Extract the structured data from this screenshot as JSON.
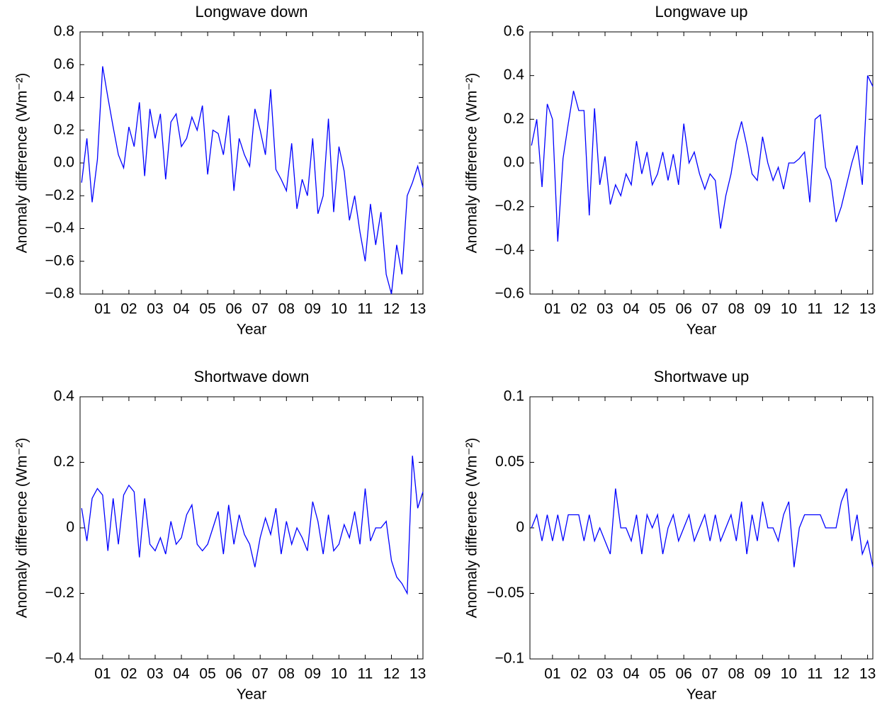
{
  "chart_data": [
    {
      "type": "line",
      "title": "Longwave down",
      "xlabel": "Year",
      "ylabel": "Anomaly difference (Wm⁻²)",
      "color": "#0000ff",
      "x": [
        0.2,
        0.4,
        0.6,
        0.8,
        1.0,
        1.2,
        1.4,
        1.6,
        1.8,
        2.0,
        2.2,
        2.4,
        2.6,
        2.8,
        3.0,
        3.2,
        3.4,
        3.6,
        3.8,
        4.0,
        4.2,
        4.4,
        4.6,
        4.8,
        5.0,
        5.2,
        5.4,
        5.6,
        5.8,
        6.0,
        6.2,
        6.4,
        6.6,
        6.8,
        7.0,
        7.2,
        7.4,
        7.6,
        7.8,
        8.0,
        8.2,
        8.4,
        8.6,
        8.8,
        9.0,
        9.2,
        9.4,
        9.6,
        9.8,
        10.0,
        10.2,
        10.4,
        10.6,
        10.8,
        11.0,
        11.2,
        11.4,
        11.6,
        11.8,
        12.0,
        12.2,
        12.4,
        12.6,
        12.8,
        13.0,
        13.2
      ],
      "values": [
        -0.12,
        0.15,
        -0.24,
        0.02,
        0.59,
        0.4,
        0.22,
        0.05,
        -0.03,
        0.22,
        0.1,
        0.37,
        -0.08,
        0.33,
        0.15,
        0.3,
        -0.1,
        0.25,
        0.3,
        0.1,
        0.15,
        0.28,
        0.2,
        0.35,
        -0.07,
        0.2,
        0.18,
        0.05,
        0.29,
        -0.17,
        0.15,
        0.05,
        -0.02,
        0.33,
        0.2,
        0.05,
        0.45,
        -0.04,
        -0.1,
        -0.17,
        0.12,
        -0.28,
        -0.1,
        -0.2,
        0.15,
        -0.31,
        -0.2,
        0.27,
        -0.3,
        0.1,
        -0.05,
        -0.35,
        -0.2,
        -0.42,
        -0.6,
        -0.25,
        -0.5,
        -0.3,
        -0.68,
        -0.8,
        -0.5,
        -0.68,
        -0.2,
        -0.12,
        -0.02,
        -0.15
      ],
      "xlim": [
        0.14,
        13.2
      ],
      "xticks": [
        {
          "value": 1,
          "label": "01"
        },
        {
          "value": 2,
          "label": "02"
        },
        {
          "value": 3,
          "label": "03"
        },
        {
          "value": 4,
          "label": "04"
        },
        {
          "value": 5,
          "label": "05"
        },
        {
          "value": 6,
          "label": "06"
        },
        {
          "value": 7,
          "label": "07"
        },
        {
          "value": 8,
          "label": "08"
        },
        {
          "value": 9,
          "label": "09"
        },
        {
          "value": 10,
          "label": "10"
        },
        {
          "value": 11,
          "label": "11"
        },
        {
          "value": 12,
          "label": "12"
        },
        {
          "value": 13,
          "label": "13"
        }
      ],
      "ylim": [
        -0.8,
        0.8
      ],
      "yticks": [
        {
          "value": -0.8,
          "label": "−0.8"
        },
        {
          "value": -0.6,
          "label": "−0.6"
        },
        {
          "value": -0.4,
          "label": "−0.4"
        },
        {
          "value": -0.2,
          "label": "−0.2"
        },
        {
          "value": 0,
          "label": "0.0"
        },
        0.2,
        0.4,
        0.6,
        0.8
      ]
    },
    {
      "type": "line",
      "title": "Longwave up",
      "xlabel": "Year",
      "ylabel": "Anomaly difference (Wm⁻²)",
      "color": "#0000ff",
      "x": [
        0.2,
        0.4,
        0.6,
        0.8,
        1.0,
        1.2,
        1.4,
        1.6,
        1.8,
        2.0,
        2.2,
        2.4,
        2.6,
        2.8,
        3.0,
        3.2,
        3.4,
        3.6,
        3.8,
        4.0,
        4.2,
        4.4,
        4.6,
        4.8,
        5.0,
        5.2,
        5.4,
        5.6,
        5.8,
        6.0,
        6.2,
        6.4,
        6.6,
        6.8,
        7.0,
        7.2,
        7.4,
        7.6,
        7.8,
        8.0,
        8.2,
        8.4,
        8.6,
        8.8,
        9.0,
        9.2,
        9.4,
        9.6,
        9.8,
        10.0,
        10.2,
        10.4,
        10.6,
        10.8,
        11.0,
        11.2,
        11.4,
        11.6,
        11.8,
        12.0,
        12.2,
        12.4,
        12.6,
        12.8,
        13.0,
        13.2
      ],
      "values": [
        0.08,
        0.2,
        -0.11,
        0.27,
        0.2,
        -0.36,
        0.02,
        0.18,
        0.33,
        0.24,
        0.24,
        -0.24,
        0.25,
        -0.1,
        0.03,
        -0.19,
        -0.1,
        -0.15,
        -0.05,
        -0.1,
        0.1,
        -0.05,
        0.05,
        -0.1,
        -0.05,
        0.05,
        -0.08,
        0.04,
        -0.1,
        0.18,
        0.0,
        0.05,
        -0.05,
        -0.12,
        -0.05,
        -0.08,
        -0.3,
        -0.15,
        -0.05,
        0.1,
        0.19,
        0.08,
        -0.05,
        -0.08,
        0.12,
        0.0,
        -0.08,
        -0.02,
        -0.12,
        0.0,
        0.0,
        0.02,
        0.05,
        -0.18,
        0.2,
        0.22,
        -0.02,
        -0.08,
        -0.27,
        -0.2,
        -0.1,
        0.0,
        0.08,
        -0.1,
        0.4,
        0.35
      ],
      "xlim": [
        0.14,
        13.2
      ],
      "xticks": [
        {
          "value": 1,
          "label": "01"
        },
        {
          "value": 2,
          "label": "02"
        },
        {
          "value": 3,
          "label": "03"
        },
        {
          "value": 4,
          "label": "04"
        },
        {
          "value": 5,
          "label": "05"
        },
        {
          "value": 6,
          "label": "06"
        },
        {
          "value": 7,
          "label": "07"
        },
        {
          "value": 8,
          "label": "08"
        },
        {
          "value": 9,
          "label": "09"
        },
        {
          "value": 10,
          "label": "10"
        },
        {
          "value": 11,
          "label": "11"
        },
        {
          "value": 12,
          "label": "12"
        },
        {
          "value": 13,
          "label": "13"
        }
      ],
      "ylim": [
        -0.6,
        0.6
      ],
      "yticks": [
        {
          "value": -0.6,
          "label": "−0.6"
        },
        {
          "value": -0.4,
          "label": "−0.4"
        },
        {
          "value": -0.2,
          "label": "−0.2"
        },
        {
          "value": 0,
          "label": "0.0"
        },
        0.2,
        0.4,
        0.6
      ]
    },
    {
      "type": "line",
      "title": "Shortwave down",
      "xlabel": "Year",
      "ylabel": "Anomaly difference (Wm⁻²)",
      "color": "#0000ff",
      "x": [
        0.2,
        0.4,
        0.6,
        0.8,
        1.0,
        1.2,
        1.4,
        1.6,
        1.8,
        2.0,
        2.2,
        2.4,
        2.6,
        2.8,
        3.0,
        3.2,
        3.4,
        3.6,
        3.8,
        4.0,
        4.2,
        4.4,
        4.6,
        4.8,
        5.0,
        5.2,
        5.4,
        5.6,
        5.8,
        6.0,
        6.2,
        6.4,
        6.6,
        6.8,
        7.0,
        7.2,
        7.4,
        7.6,
        7.8,
        8.0,
        8.2,
        8.4,
        8.6,
        8.8,
        9.0,
        9.2,
        9.4,
        9.6,
        9.8,
        10.0,
        10.2,
        10.4,
        10.6,
        10.8,
        11.0,
        11.2,
        11.4,
        11.6,
        11.8,
        12.0,
        12.2,
        12.4,
        12.6,
        12.8,
        13.0,
        13.2
      ],
      "values": [
        0.06,
        -0.04,
        0.09,
        0.12,
        0.1,
        -0.07,
        0.09,
        -0.05,
        0.1,
        0.13,
        0.11,
        -0.09,
        0.09,
        -0.05,
        -0.07,
        -0.03,
        -0.08,
        0.02,
        -0.05,
        -0.03,
        0.04,
        0.07,
        -0.05,
        -0.07,
        -0.05,
        0.0,
        0.05,
        -0.08,
        0.07,
        -0.05,
        0.04,
        -0.02,
        -0.05,
        -0.12,
        -0.03,
        0.03,
        -0.02,
        0.06,
        -0.08,
        0.02,
        -0.05,
        0.0,
        -0.03,
        -0.07,
        0.08,
        0.02,
        -0.08,
        0.04,
        -0.07,
        -0.05,
        0.01,
        -0.03,
        0.05,
        -0.05,
        0.12,
        -0.04,
        0.0,
        0.0,
        0.02,
        -0.1,
        -0.15,
        -0.17,
        -0.2,
        0.22,
        0.06,
        0.11
      ],
      "xlim": [
        0.14,
        13.2
      ],
      "xticks": [
        {
          "value": 1,
          "label": "01"
        },
        {
          "value": 2,
          "label": "02"
        },
        {
          "value": 3,
          "label": "03"
        },
        {
          "value": 4,
          "label": "04"
        },
        {
          "value": 5,
          "label": "05"
        },
        {
          "value": 6,
          "label": "06"
        },
        {
          "value": 7,
          "label": "07"
        },
        {
          "value": 8,
          "label": "08"
        },
        {
          "value": 9,
          "label": "09"
        },
        {
          "value": 10,
          "label": "10"
        },
        {
          "value": 11,
          "label": "11"
        },
        {
          "value": 12,
          "label": "12"
        },
        {
          "value": 13,
          "label": "13"
        }
      ],
      "ylim": [
        -0.4,
        0.4
      ],
      "yticks": [
        {
          "value": -0.4,
          "label": "−0.4"
        },
        {
          "value": -0.2,
          "label": "−0.2"
        },
        0,
        0.2,
        0.4
      ]
    },
    {
      "type": "line",
      "title": "Shortwave up",
      "xlabel": "Year",
      "ylabel": "Anomaly difference (Wm⁻²)",
      "color": "#0000ff",
      "x": [
        0.2,
        0.4,
        0.6,
        0.8,
        1.0,
        1.2,
        1.4,
        1.6,
        1.8,
        2.0,
        2.2,
        2.4,
        2.6,
        2.8,
        3.0,
        3.2,
        3.4,
        3.6,
        3.8,
        4.0,
        4.2,
        4.4,
        4.6,
        4.8,
        5.0,
        5.2,
        5.4,
        5.6,
        5.8,
        6.0,
        6.2,
        6.4,
        6.6,
        6.8,
        7.0,
        7.2,
        7.4,
        7.6,
        7.8,
        8.0,
        8.2,
        8.4,
        8.6,
        8.8,
        9.0,
        9.2,
        9.4,
        9.6,
        9.8,
        10.0,
        10.2,
        10.4,
        10.6,
        10.8,
        11.0,
        11.2,
        11.4,
        11.6,
        11.8,
        12.0,
        12.2,
        12.4,
        12.6,
        12.8,
        13.0,
        13.2
      ],
      "values": [
        0,
        0.01,
        -0.01,
        0.01,
        -0.01,
        0.01,
        -0.01,
        0.01,
        0.01,
        0.01,
        -0.01,
        0.01,
        -0.01,
        0,
        -0.01,
        -0.02,
        0.03,
        0,
        0,
        -0.01,
        0.01,
        -0.02,
        0.01,
        0,
        0.01,
        -0.02,
        0,
        0.01,
        -0.01,
        0,
        0.01,
        -0.01,
        0,
        0.01,
        -0.01,
        0.01,
        -0.01,
        0,
        0.01,
        -0.01,
        0.02,
        -0.02,
        0.01,
        -0.01,
        0.02,
        0,
        0,
        -0.01,
        0.01,
        0.02,
        -0.03,
        0,
        0.01,
        0.01,
        0.01,
        0.01,
        0,
        0,
        0,
        0.02,
        0.03,
        -0.01,
        0.01,
        -0.02,
        -0.01,
        -0.03
      ],
      "xlim": [
        0.14,
        13.2
      ],
      "xticks": [
        {
          "value": 1,
          "label": "01"
        },
        {
          "value": 2,
          "label": "02"
        },
        {
          "value": 3,
          "label": "03"
        },
        {
          "value": 4,
          "label": "04"
        },
        {
          "value": 5,
          "label": "05"
        },
        {
          "value": 6,
          "label": "06"
        },
        {
          "value": 7,
          "label": "07"
        },
        {
          "value": 8,
          "label": "08"
        },
        {
          "value": 9,
          "label": "09"
        },
        {
          "value": 10,
          "label": "10"
        },
        {
          "value": 11,
          "label": "11"
        },
        {
          "value": 12,
          "label": "12"
        },
        {
          "value": 13,
          "label": "13"
        }
      ],
      "ylim": [
        -0.1,
        0.1
      ],
      "yticks": [
        {
          "value": -0.1,
          "label": "−0.1"
        },
        {
          "value": -0.05,
          "label": "−0.05"
        },
        0,
        0.05,
        0.1
      ]
    }
  ]
}
